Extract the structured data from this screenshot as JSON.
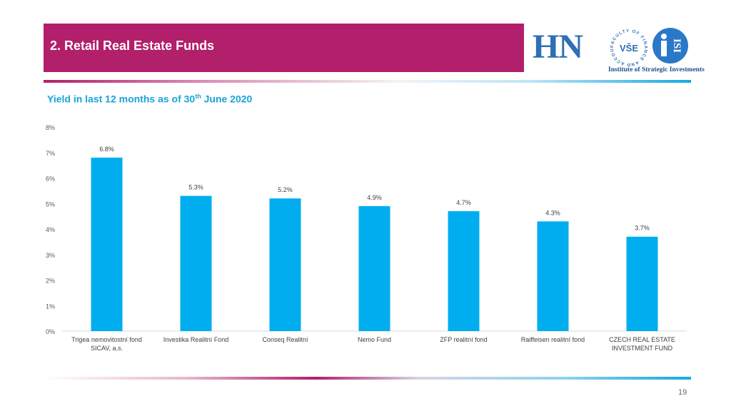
{
  "header": {
    "title": "2. Retail Real Estate Funds"
  },
  "logos": {
    "hn_text": "HN",
    "vse_text": "VŠE",
    "vse_ring_text": "FACULTY OF FINANCE AND ACCOUNTING",
    "isi_text": "ISI",
    "caption": "Institute of Strategic Investments"
  },
  "subtitle": {
    "text_before": "Yield in last 12 months as of 30",
    "superscript": "th",
    "text_after": " June 2020"
  },
  "chart_data": {
    "type": "bar",
    "categories": [
      "Trigea nemovitostní fond SICAV, a.s.",
      "Investika Realitní Fond",
      "Conseq Realitní",
      "Nemo Fund",
      "ZFP realitní fond",
      "Raiffeisen realitní fond",
      "CZECH REAL ESTATE INVESTMENT FUND"
    ],
    "category_lines": [
      [
        "Trigea nemovitostní fond",
        "SICAV, a.s."
      ],
      [
        "Investika Realitní Fond"
      ],
      [
        "Conseq Realitní"
      ],
      [
        "Nemo Fund"
      ],
      [
        "ZFP realitní fond"
      ],
      [
        "Raiffeisen realitní fond"
      ],
      [
        "CZECH REAL ESTATE",
        "INVESTMENT FUND"
      ]
    ],
    "values": [
      6.8,
      5.3,
      5.2,
      4.9,
      4.7,
      4.3,
      3.7
    ],
    "value_labels": [
      "6.8%",
      "5.3%",
      "5.2%",
      "4.9%",
      "4.7%",
      "4.3%",
      "3.7%"
    ],
    "ylim": [
      0,
      8
    ],
    "yticks": [
      0,
      1,
      2,
      3,
      4,
      5,
      6,
      7,
      8
    ],
    "ytick_labels": [
      "0%",
      "1%",
      "2%",
      "3%",
      "4%",
      "5%",
      "6%",
      "7%",
      "8%"
    ],
    "grid": false,
    "bar_color": "#00aeef",
    "xlabel": "",
    "ylabel": ""
  },
  "footer": {
    "page_number": "19"
  },
  "colors": {
    "brand_magenta": "#b21f6b",
    "brand_cyan": "#1aa3d6",
    "logo_blue": "#2e6fb5"
  }
}
